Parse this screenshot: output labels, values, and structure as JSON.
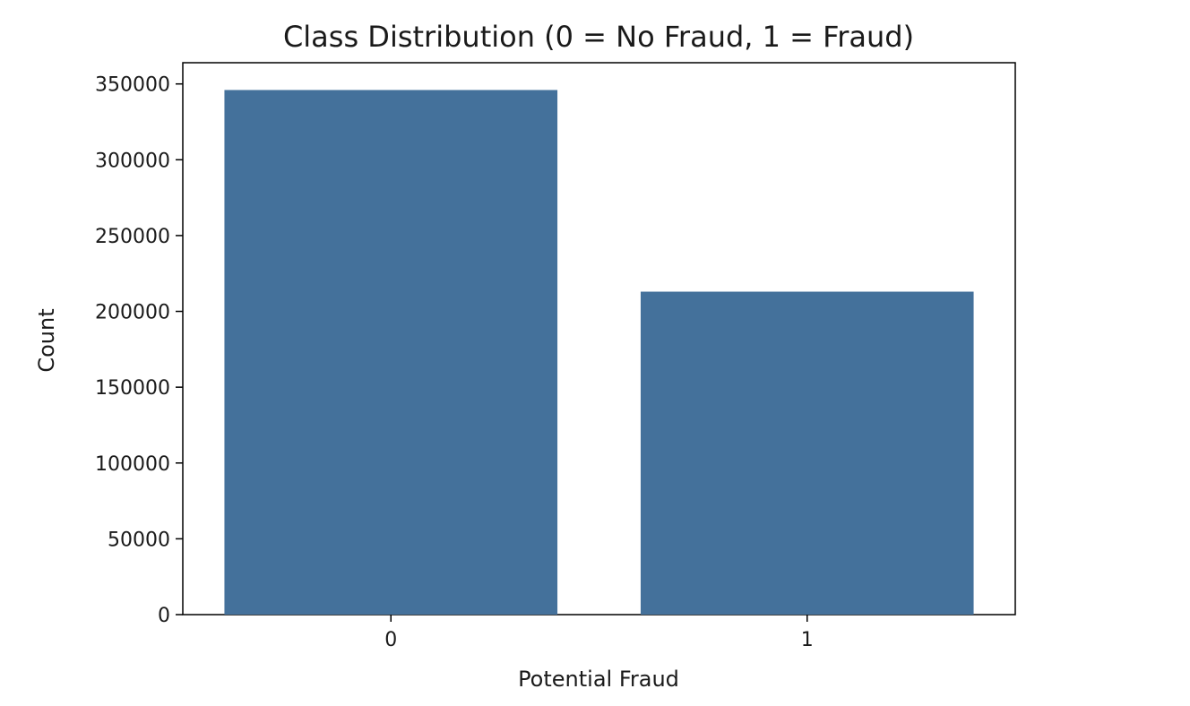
{
  "chart_data": {
    "type": "bar",
    "title": "Class Distribution (0 = No Fraud, 1 = Fraud)",
    "xlabel": "Potential Fraud",
    "ylabel": "Count",
    "categories": [
      "0",
      "1"
    ],
    "values": [
      346000,
      213000
    ],
    "ylim": [
      0,
      364000
    ],
    "yticks": [
      0,
      50000,
      100000,
      150000,
      200000,
      250000,
      300000,
      350000
    ],
    "ytick_labels": [
      "0",
      "50000",
      "100000",
      "150000",
      "200000",
      "250000",
      "300000",
      "350000"
    ],
    "grid": false,
    "legend": "none",
    "bar_color": "#44719b"
  }
}
